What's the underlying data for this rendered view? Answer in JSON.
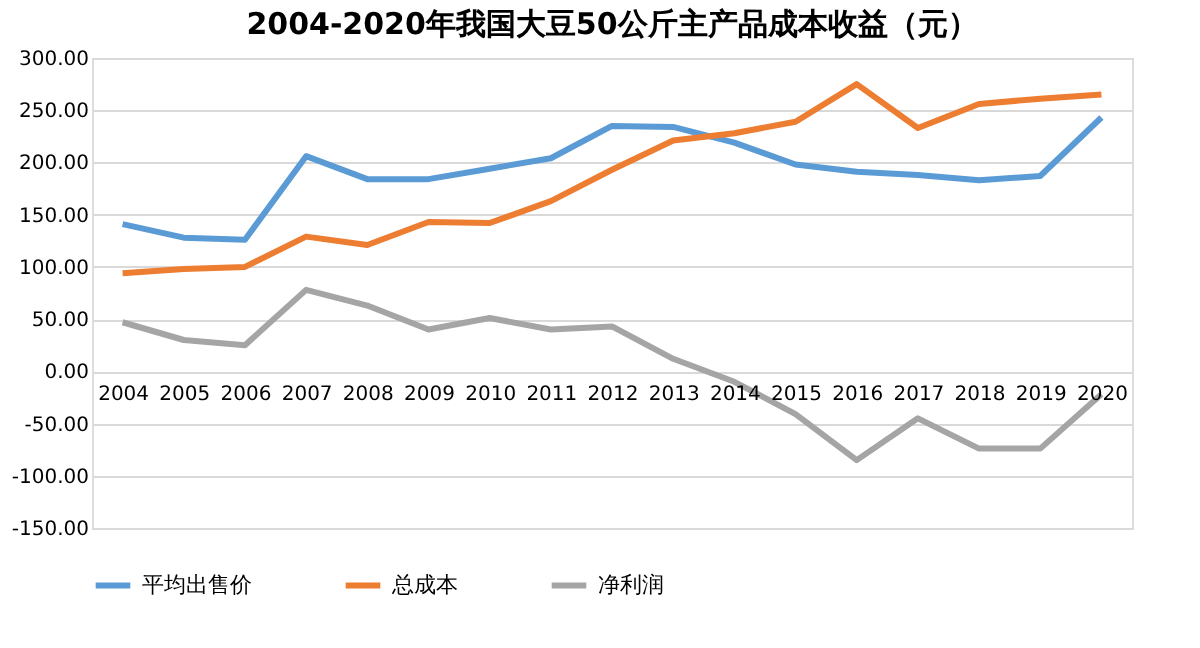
{
  "chart_data": {
    "type": "line",
    "title": "2004-2020年我国大豆50公斤主产品成本收益（元）",
    "categories": [
      "2004",
      "2005",
      "2006",
      "2007",
      "2008",
      "2009",
      "2010",
      "2011",
      "2012",
      "2013",
      "2014",
      "2015",
      "2016",
      "2017",
      "2018",
      "2019",
      "2020"
    ],
    "series": [
      {
        "name": "平均出售价",
        "color": "#5b9bd5",
        "values": [
          141,
          128,
          126,
          206,
          184,
          184,
          194,
          204,
          235,
          234,
          219,
          198,
          191,
          188,
          183,
          187,
          243
        ]
      },
      {
        "name": "总成本",
        "color": "#ed7d31",
        "values": [
          94,
          98,
          100,
          129,
          121,
          143,
          142,
          163,
          193,
          221,
          228,
          239,
          275,
          233,
          256,
          261,
          265
        ]
      },
      {
        "name": "净利润",
        "color": "#a5a5a5",
        "values": [
          47,
          30,
          25,
          78,
          63,
          40,
          51,
          40,
          43,
          12,
          -10,
          -41,
          -85,
          -45,
          -74,
          -74,
          -22
        ]
      }
    ],
    "ylim": [
      -150,
      300
    ],
    "yticks": [
      {
        "value": -150,
        "label": "-150.00"
      },
      {
        "value": -100,
        "label": "-100.00"
      },
      {
        "value": -50,
        "label": "-50.00"
      },
      {
        "value": 0,
        "label": "0.00"
      },
      {
        "value": 50,
        "label": "50.00"
      },
      {
        "value": 100,
        "label": "100.00"
      },
      {
        "value": 150,
        "label": "150.00"
      },
      {
        "value": 200,
        "label": "200.00"
      },
      {
        "value": 250,
        "label": "250.00"
      },
      {
        "value": 300,
        "label": "300.00"
      }
    ],
    "grid": "y",
    "legend": "bottom",
    "marker": "none",
    "line_style": "solid"
  }
}
